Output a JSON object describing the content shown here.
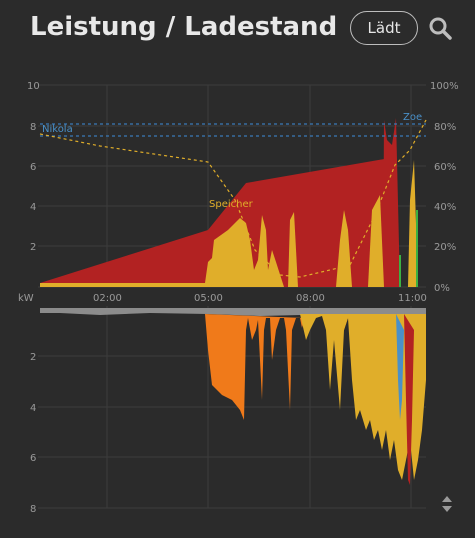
{
  "header": {
    "title": "Leistung / Ladestand",
    "status_button": "Lädt",
    "search_icon": "search-icon"
  },
  "colors": {
    "background": "#2b2b2b",
    "red_charge": "#b22222",
    "yellow_storage": "#e0ae2a",
    "orange_grid": "#f07a1a",
    "grey_base": "#8c8c8c",
    "blue_soc": "#4a90c8",
    "dotted_yellow": "#e0ae2a",
    "dotted_blue": "#3a7ab8",
    "green": "#3cb043"
  },
  "chart_data": [
    {
      "type": "area",
      "y_unit_label": "kW",
      "ylim": [
        0,
        10
      ],
      "y_ticks": [
        "2",
        "4",
        "6",
        "8",
        "10"
      ],
      "y2_ticks": [
        "0%",
        "20%",
        "40%",
        "60%",
        "80%",
        "100%"
      ],
      "x_ticks": [
        "02:00",
        "05:00",
        "08:00",
        "11:00"
      ],
      "annotations": [
        "Nikola",
        "Zoe",
        "Speicher"
      ],
      "grid": true
    },
    {
      "type": "area",
      "ylim": [
        0,
        8
      ],
      "y_ticks": [
        "2",
        "4",
        "6",
        "8"
      ],
      "grid": true
    }
  ]
}
